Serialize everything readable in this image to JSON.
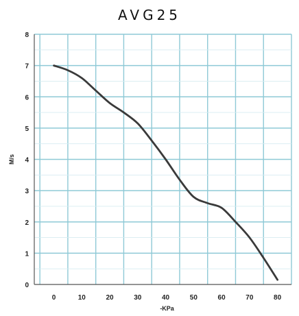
{
  "chart_data": {
    "type": "line",
    "title": "AVG25",
    "xlabel": "-KPa",
    "ylabel": "M/s",
    "xlim": [
      -7,
      85
    ],
    "ylim": [
      0,
      8
    ],
    "xticks": [
      0,
      10,
      20,
      30,
      40,
      50,
      60,
      70,
      80
    ],
    "yticks": [
      0,
      1,
      2,
      3,
      4,
      5,
      6,
      7,
      8
    ],
    "x_gridlines": [
      -5,
      5,
      15,
      25,
      35,
      45,
      55,
      65,
      75,
      85
    ],
    "grid": true,
    "grid_color": "#8ec9d6",
    "line_color": "#3a3a3a",
    "series": [
      {
        "x": [
          0,
          5,
          10,
          15,
          20,
          25,
          30,
          35,
          40,
          45,
          50,
          55,
          60,
          65,
          70,
          75,
          80
        ],
        "values": [
          7.0,
          6.85,
          6.6,
          6.2,
          5.8,
          5.5,
          5.15,
          4.6,
          4.0,
          3.35,
          2.8,
          2.6,
          2.45,
          2.0,
          1.5,
          0.85,
          0.15
        ]
      }
    ]
  }
}
